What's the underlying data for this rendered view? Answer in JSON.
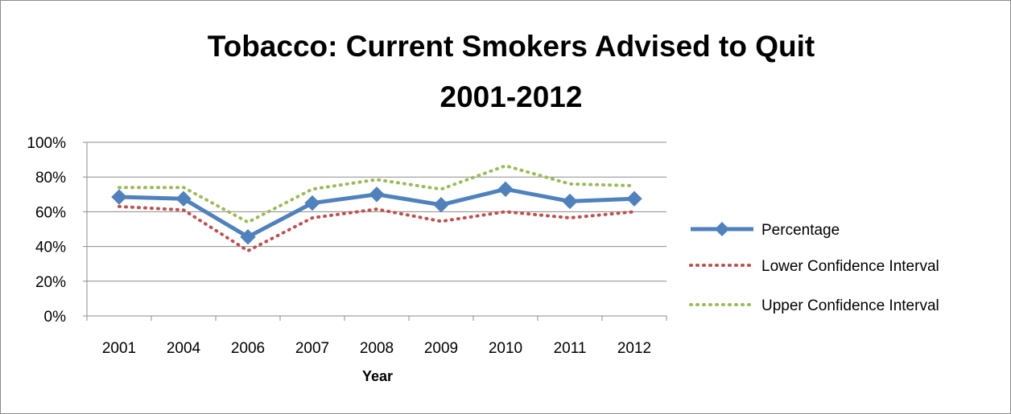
{
  "chart_data": {
    "type": "line",
    "title_lines": [
      "Tobacco: Current Smokers Advised to Quit",
      "2001-2012"
    ],
    "xlabel": "Year",
    "ylabel": "",
    "categories": [
      "2001",
      "2004",
      "2006",
      "2007",
      "2008",
      "2009",
      "2010",
      "2011",
      "2012"
    ],
    "y_ticks": [
      "0%",
      "20%",
      "40%",
      "60%",
      "80%",
      "100%"
    ],
    "ylim": [
      0,
      100
    ],
    "y_unit": "percent",
    "grid": true,
    "legend_position": "right",
    "series": [
      {
        "name": "Percentage",
        "values": [
          68.5,
          67.5,
          45.5,
          65,
          70,
          64,
          73,
          66,
          67.5
        ],
        "color": "#4f81bd",
        "style": "solid",
        "marker": "diamond"
      },
      {
        "name": "Lower Confidence Interval",
        "values": [
          63,
          61,
          37.5,
          56.5,
          61.5,
          54.5,
          60,
          56.5,
          60
        ],
        "color": "#c0504d",
        "style": "dotted",
        "marker": "none"
      },
      {
        "name": "Upper Confidence Interval",
        "values": [
          74,
          74,
          54,
          73,
          78.5,
          73,
          86.5,
          76,
          75
        ],
        "color": "#9bbb59",
        "style": "dotted",
        "marker": "none"
      }
    ]
  }
}
